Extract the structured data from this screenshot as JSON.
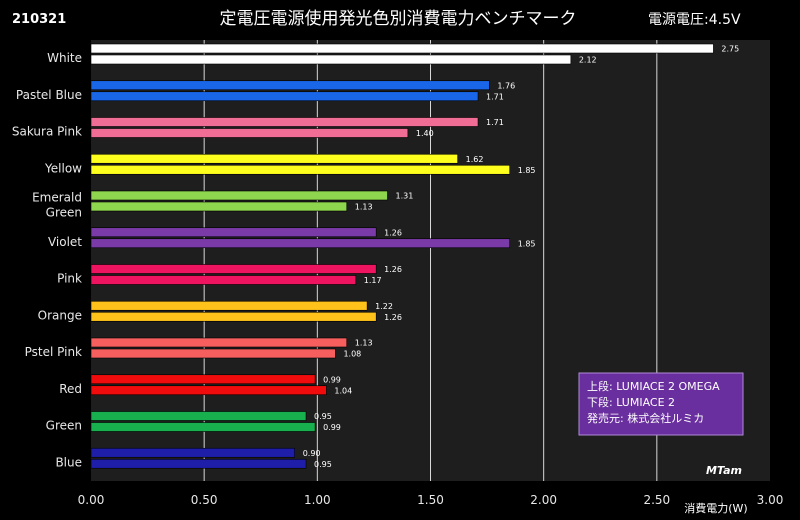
{
  "header": {
    "id_code": "210321",
    "title": "定電圧電源使用発光色別消費電力ベンチマーク",
    "voltage_note": "電源電圧:4.5V"
  },
  "legend_box": {
    "line1": "上段: LUMIACE 2 OMEGA",
    "line2": "下段:  LUMIACE 2",
    "line3": "発売元:  株式会社ルミカ",
    "bg_color": "#6a2f9e"
  },
  "watermark": "MTam",
  "chart_data": {
    "type": "bar",
    "orientation": "horizontal",
    "title": "定電圧電源使用発光色別消費電力ベンチマーク",
    "xlabel": "消費電力(W)",
    "ylabel": "",
    "xlim": [
      0,
      3
    ],
    "x_ticks": [
      "0.00",
      "0.50",
      "1.00",
      "1.50",
      "2.00",
      "2.50",
      "3.00"
    ],
    "grid": true,
    "categories": [
      {
        "label": "White",
        "color": "#ffffff"
      },
      {
        "label": "Pastel Blue",
        "color": "#1a66e8"
      },
      {
        "label": "Sakura Pink",
        "color": "#f06e96"
      },
      {
        "label": "Yellow",
        "color": "#ffff1e"
      },
      {
        "label": "Emerald Green",
        "label_lines": [
          "Emerald",
          "Green"
        ],
        "color": "#8ed64e"
      },
      {
        "label": "Violet",
        "color": "#7a3aa8"
      },
      {
        "label": "Pink",
        "color": "#ef1460"
      },
      {
        "label": "Orange",
        "color": "#ffc21a"
      },
      {
        "label": "Pstel Pink",
        "color": "#f75e5e"
      },
      {
        "label": "Red",
        "color": "#f00c0c"
      },
      {
        "label": "Green",
        "color": "#18b04e"
      },
      {
        "label": "Blue",
        "color": "#1e1ea8"
      }
    ],
    "series": [
      {
        "name": "LUMIACE 2 OMEGA",
        "position": "top",
        "values": [
          2.75,
          1.76,
          1.71,
          1.62,
          1.31,
          1.26,
          1.26,
          1.22,
          1.13,
          0.99,
          0.95,
          0.9
        ]
      },
      {
        "name": "LUMIACE 2",
        "position": "bottom",
        "values": [
          2.12,
          1.71,
          1.4,
          1.85,
          1.13,
          1.85,
          1.17,
          1.26,
          1.08,
          1.04,
          0.99,
          0.95
        ]
      }
    ],
    "colors": {
      "background": "#000000",
      "plot_background": "#1e1e1e",
      "grid": "#d8d8d8"
    }
  }
}
